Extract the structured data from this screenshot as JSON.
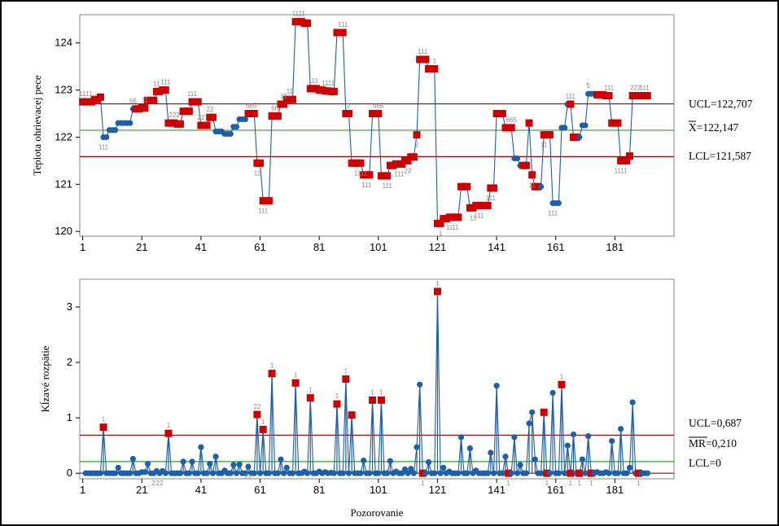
{
  "colors": {
    "series": "#1f5fa6",
    "marker": "#1f5fa6",
    "flagged": "#cc0000",
    "control_limit": "#a00000",
    "center_line": "#2ca02c",
    "flag_text": "#8a8a8a"
  },
  "chart_data": [
    {
      "type": "line",
      "chart": "individuals",
      "xlabel": "",
      "ylabel": "Teplota ohrievacej pece",
      "xticks": [
        1,
        21,
        41,
        61,
        81,
        101,
        121,
        141,
        161,
        181
      ],
      "yticks": [
        120,
        121,
        122,
        123,
        124
      ],
      "xlim": [
        0,
        201
      ],
      "ylim": [
        119.9,
        124.6
      ],
      "limits": {
        "ucl": {
          "value": 122.707,
          "label": "UCL=122,707"
        },
        "center": {
          "value": 122.147,
          "label": "X=122,147"
        },
        "lcl": {
          "value": 121.587,
          "label": "LCL=121,587"
        }
      },
      "y": [
        122.75,
        122.75,
        122.75,
        122.75,
        122.8,
        122.8,
        122.85,
        122.0,
        122.0,
        122.15,
        122.15,
        122.15,
        122.3,
        122.3,
        122.3,
        122.3,
        122.3,
        122.6,
        122.6,
        122.6,
        122.62,
        122.62,
        122.78,
        122.78,
        122.78,
        122.97,
        122.97,
        123.0,
        123.0,
        122.3,
        122.3,
        122.3,
        122.28,
        122.28,
        122.55,
        122.55,
        122.55,
        122.75,
        122.75,
        122.75,
        122.25,
        122.25,
        122.25,
        122.42,
        122.42,
        122.12,
        122.12,
        122.12,
        122.07,
        122.07,
        122.07,
        122.22,
        122.22,
        122.38,
        122.38,
        122.38,
        122.5,
        122.5,
        122.5,
        121.45,
        121.45,
        120.65,
        120.65,
        120.65,
        122.45,
        122.45,
        122.45,
        122.7,
        122.7,
        122.8,
        122.8,
        122.8,
        124.45,
        124.45,
        124.45,
        124.42,
        124.42,
        123.03,
        123.03,
        123.03,
        123.0,
        123.0,
        122.98,
        122.98,
        122.97,
        122.97,
        124.22,
        124.22,
        124.22,
        122.5,
        122.5,
        121.45,
        121.45,
        121.45,
        121.45,
        121.2,
        121.2,
        121.2,
        122.5,
        122.5,
        122.5,
        121.18,
        121.18,
        121.18,
        121.4,
        121.4,
        121.43,
        121.43,
        121.43,
        121.5,
        121.5,
        121.58,
        121.58,
        122.05,
        123.65,
        123.65,
        123.65,
        123.45,
        123.45,
        123.45,
        120.17,
        120.17,
        120.27,
        120.27,
        120.3,
        120.3,
        120.3,
        120.3,
        120.95,
        120.95,
        120.95,
        120.5,
        120.5,
        120.55,
        120.55,
        120.55,
        120.55,
        120.55,
        120.92,
        120.92,
        122.5,
        122.5,
        122.5,
        122.2,
        122.2,
        122.2,
        121.55,
        121.55,
        121.4,
        121.4,
        121.4,
        122.3,
        121.2,
        120.95,
        120.95,
        120.95,
        122.05,
        122.05,
        122.05,
        120.6,
        120.6,
        120.6,
        122.2,
        122.2,
        122.7,
        122.7,
        122.0,
        122.0,
        122.0,
        122.25,
        122.25,
        122.92,
        122.92,
        122.92,
        122.9,
        122.9,
        122.9,
        122.88,
        122.88,
        122.3,
        122.3,
        122.3,
        121.5,
        121.5,
        121.5,
        121.6,
        122.88,
        122.88,
        122.88,
        122.88,
        122.88,
        122.88
      ],
      "out_of_control": [
        1,
        2,
        3,
        4,
        5,
        6,
        7,
        19,
        20,
        21,
        22,
        23,
        24,
        25,
        26,
        27,
        28,
        29,
        30,
        31,
        32,
        33,
        34,
        35,
        36,
        37,
        38,
        39,
        40,
        41,
        42,
        43,
        44,
        45,
        57,
        58,
        59,
        60,
        61,
        62,
        63,
        64,
        65,
        66,
        67,
        68,
        69,
        70,
        71,
        72,
        73,
        74,
        75,
        76,
        77,
        78,
        79,
        80,
        81,
        82,
        83,
        84,
        85,
        86,
        87,
        88,
        89,
        90,
        91,
        92,
        93,
        94,
        95,
        96,
        97,
        98,
        99,
        100,
        101,
        102,
        103,
        104,
        105,
        106,
        107,
        108,
        109,
        110,
        111,
        112,
        113,
        114,
        115,
        116,
        117,
        118,
        119,
        120,
        121,
        122,
        123,
        124,
        125,
        126,
        127,
        128,
        129,
        130,
        131,
        132,
        133,
        134,
        135,
        136,
        137,
        138,
        139,
        140,
        141,
        142,
        143,
        144,
        145,
        146,
        150,
        151,
        152,
        153,
        154,
        155,
        157,
        158,
        159,
        166,
        167,
        168,
        175,
        176,
        177,
        178,
        179,
        180,
        181,
        182,
        183,
        184,
        185,
        186,
        187,
        188,
        189,
        190,
        191,
        192,
        193,
        194,
        195,
        196,
        197,
        198,
        199,
        200
      ],
      "flag_labels": [
        {
          "x": 2,
          "text": "1111"
        },
        {
          "x": 8,
          "text": "111"
        },
        {
          "x": 18,
          "text": "66"
        },
        {
          "x": 22,
          "text": "11"
        },
        {
          "x": 26,
          "text": "11"
        },
        {
          "x": 29,
          "text": "111"
        },
        {
          "x": 32,
          "text": "222"
        },
        {
          "x": 38,
          "text": "111"
        },
        {
          "x": 41,
          "text": "22"
        },
        {
          "x": 44,
          "text": "22"
        },
        {
          "x": 58,
          "text": "665"
        },
        {
          "x": 60,
          "text": "11"
        },
        {
          "x": 62,
          "text": "111"
        },
        {
          "x": 66,
          "text": "66"
        },
        {
          "x": 69,
          "text": "11"
        },
        {
          "x": 71,
          "text": "11"
        },
        {
          "x": 74,
          "text": "1111"
        },
        {
          "x": 79,
          "text": "111"
        },
        {
          "x": 84,
          "text": "1111"
        },
        {
          "x": 89,
          "text": "111"
        },
        {
          "x": 91,
          "text": "2"
        },
        {
          "x": 95,
          "text": "1111"
        },
        {
          "x": 97,
          "text": "111"
        },
        {
          "x": 101,
          "text": "665"
        },
        {
          "x": 104,
          "text": "111"
        },
        {
          "x": 108,
          "text": "111"
        },
        {
          "x": 111,
          "text": "22"
        },
        {
          "x": 114,
          "text": "2"
        },
        {
          "x": 116,
          "text": "111"
        },
        {
          "x": 120,
          "text": "1"
        },
        {
          "x": 122,
          "text": "1"
        },
        {
          "x": 125,
          "text": "11"
        },
        {
          "x": 127,
          "text": "11"
        },
        {
          "x": 133,
          "text": "11"
        },
        {
          "x": 135,
          "text": "111"
        },
        {
          "x": 139,
          "text": "111"
        },
        {
          "x": 146,
          "text": "665"
        },
        {
          "x": 153,
          "text": "11"
        },
        {
          "x": 157,
          "text": "11"
        },
        {
          "x": 160,
          "text": "111"
        },
        {
          "x": 166,
          "text": "111"
        },
        {
          "x": 172,
          "text": "5"
        },
        {
          "x": 179,
          "text": "111"
        },
        {
          "x": 183,
          "text": "1111"
        },
        {
          "x": 188,
          "text": "222"
        },
        {
          "x": 191,
          "text": "111"
        },
        {
          "x": 193,
          "text": "5"
        },
        {
          "x": 198,
          "text": "1111"
        }
      ]
    },
    {
      "type": "line",
      "chart": "moving_range",
      "xlabel": "Pozorovanie",
      "ylabel": "Kĺzavé rozpätie",
      "xticks": [
        1,
        21,
        41,
        61,
        81,
        101,
        121,
        141,
        161,
        181
      ],
      "yticks": [
        0,
        1,
        2,
        3
      ],
      "xlim": [
        0,
        201
      ],
      "ylim": [
        -0.1,
        3.5
      ],
      "limits": {
        "ucl": {
          "value": 0.687,
          "label": "UCL=0,687"
        },
        "center": {
          "value": 0.21,
          "label": "MR=0,210"
        },
        "lcl": {
          "value": 0,
          "label": "LCL=0"
        }
      },
      "y": [
        null,
        0,
        0,
        0,
        0,
        0,
        0,
        0.83,
        0,
        0,
        0,
        0,
        0.1,
        0,
        0,
        0,
        0,
        0.26,
        0,
        0,
        0.02,
        0.02,
        0.17,
        0,
        0,
        0.04,
        0,
        0.04,
        0,
        0.72,
        0,
        0,
        0,
        0,
        0.21,
        0,
        0,
        0.21,
        0,
        0,
        0.47,
        0,
        0,
        0.17,
        0,
        0.3,
        0,
        0,
        0.05,
        0,
        0,
        0.15,
        0,
        0.16,
        0,
        0,
        0.12,
        0,
        0,
        1.06,
        0,
        0.79,
        0,
        0,
        1.8,
        0,
        0,
        0.25,
        0,
        0.1,
        0,
        0,
        1.63,
        0,
        0,
        0.03,
        0,
        1.36,
        0,
        0,
        0.03,
        0,
        0.02,
        0,
        0.01,
        0,
        1.25,
        0,
        0,
        1.7,
        0,
        1.05,
        0,
        0,
        0,
        0.23,
        0,
        0,
        1.32,
        0,
        0,
        1.32,
        0,
        0,
        0.22,
        0,
        0.03,
        0,
        0,
        0.07,
        0,
        0.08,
        0,
        0.47,
        1.6,
        0,
        0,
        0.2,
        0,
        0,
        3.28,
        0,
        0.1,
        0,
        0.03,
        0,
        0,
        0,
        0.65,
        0,
        0,
        0.45,
        0,
        0.05,
        0,
        0,
        0,
        0,
        0.37,
        0,
        1.58,
        0,
        0,
        0.3,
        0,
        0,
        0.65,
        0,
        0.15,
        0,
        0,
        0.9,
        1.1,
        0.25,
        0,
        0,
        1.1,
        0,
        0,
        1.45,
        0,
        0,
        1.6,
        0,
        0.5,
        0,
        0.7,
        0,
        0,
        0.25,
        0,
        0.67,
        0,
        0,
        0.02,
        0,
        0,
        0.02,
        0,
        0.58,
        0,
        0,
        0.8,
        0,
        0,
        0.1,
        1.28,
        0,
        0,
        0,
        0,
        0
      ],
      "out_of_control": [
        8,
        30,
        60,
        62,
        65,
        73,
        78,
        87,
        90,
        92,
        99,
        102,
        116,
        121,
        145,
        157,
        158,
        163,
        166,
        169,
        173,
        189,
        195
      ],
      "flag_labels": [
        {
          "x": 8,
          "text": "1"
        },
        {
          "x": 25,
          "text": "2"
        },
        {
          "x": 27,
          "text": "22"
        },
        {
          "x": 30,
          "text": "1"
        },
        {
          "x": 57,
          "text": "22"
        },
        {
          "x": 60,
          "text": "22"
        },
        {
          "x": 62,
          "text": "1"
        },
        {
          "x": 65,
          "text": "1"
        },
        {
          "x": 73,
          "text": "1"
        },
        {
          "x": 78,
          "text": "1"
        },
        {
          "x": 87,
          "text": "1"
        },
        {
          "x": 90,
          "text": "1"
        },
        {
          "x": 99,
          "text": "1"
        },
        {
          "x": 102,
          "text": "1"
        },
        {
          "x": 116,
          "text": "1"
        },
        {
          "x": 121,
          "text": "1"
        },
        {
          "x": 145,
          "text": "1"
        },
        {
          "x": 158,
          "text": "1"
        },
        {
          "x": 163,
          "text": "1"
        },
        {
          "x": 166,
          "text": "1"
        },
        {
          "x": 169,
          "text": "1"
        },
        {
          "x": 173,
          "text": "1"
        },
        {
          "x": 189,
          "text": "1"
        },
        {
          "x": 195,
          "text": "1"
        }
      ]
    }
  ]
}
